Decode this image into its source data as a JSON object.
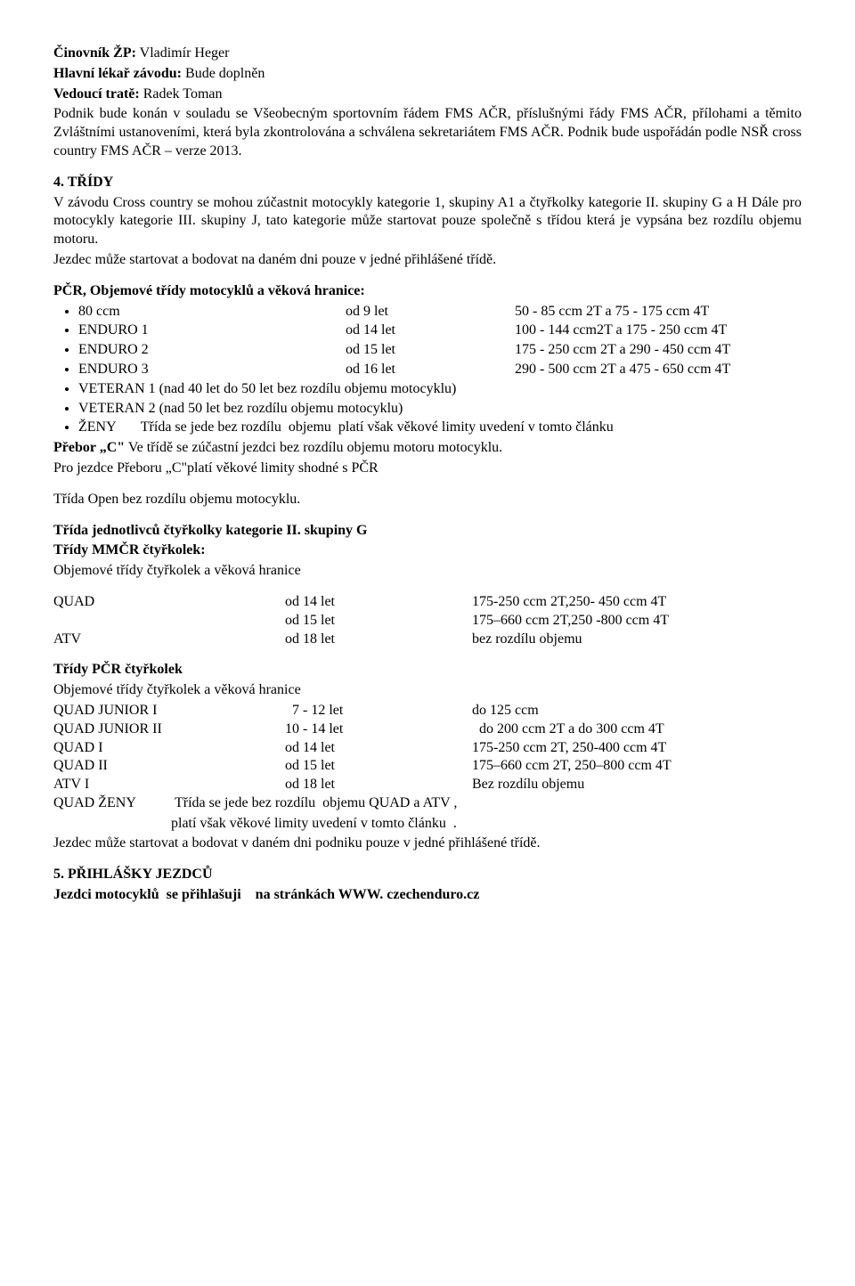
{
  "header": {
    "official_label": "Činovník ŽP:",
    "official_name": " Vladimír Heger",
    "doctor_label": "Hlavní lékař závodu:",
    "doctor_value": "  Bude doplněn",
    "track_label": "Vedoucí tratě:",
    "track_value": " Radek Toman",
    "intro1": "Podnik bude konán v souladu se Všeobecným sportovním řádem FMS AČR, příslušnými řády FMS AČR, přílohami a těmito Zvláštními ustanoveními, která byla zkontrolována a schválena sekretariátem FMS AČR. Podnik bude uspořádán podle NSŘ cross country FMS AČR – verze 2013."
  },
  "s4": {
    "title": "4. TŘÍDY",
    "p1": "V závodu Cross country se mohou zúčastnit motocykly kategorie 1, skupiny A1 a čtyřkolky kategorie II. skupiny G a H Dále pro motocykly kategorie III. skupiny J, tato kategorie může startovat pouze společně s třídou která je vypsána bez rozdílu objemu motoru.",
    "p2": "Jezdec může startovat a bodovat na daném dni pouze v jedné přihlášené třídě."
  },
  "pcr": {
    "heading": "PČR, Objemové třídy motocyklů a věková hranice:",
    "rows": [
      {
        "cls": "80 ccm",
        "age": "od  9 let",
        "spec": "  50 - 85 ccm 2T a 75 - 175 ccm 4T"
      },
      {
        "cls": "ENDURO 1",
        "age": "od 14 let",
        "spec": "100 - 144 ccm2T a 175 - 250 ccm 4T"
      },
      {
        "cls": "ENDURO 2",
        "age": "od 15 let",
        "spec": "175 - 250 ccm 2T a 290 - 450 ccm 4T"
      },
      {
        "cls": "ENDURO 3",
        "age": "od 16 let",
        "spec": "290 - 500 ccm 2T a 475 - 650 ccm 4T"
      }
    ],
    "vet1": "VETERAN 1 (nad 40 let do 50 let bez rozdílu objemu motocyklu)",
    "vet2": "VETERAN 2 (nad 50 let bez rozdílu objemu motocyklu)",
    "zeny": "ŽENY       Třída se jede bez rozdílu  objemu  platí však věkové limity uvedení v tomto článku",
    "prebor_label": "Přebor „C\"",
    "prebor_text": " Ve třídě se zúčastní jezdci bez rozdílu objemu motoru motocyklu.",
    "prebor2": " Pro jezdce Přeboru „C\"platí věkové limity shodné s PČR",
    "open": "Třída Open bez rozdílu objemu motocyklu."
  },
  "quad": {
    "h1": "Třída jednotlivců čtyřkolky kategorie II. skupiny G",
    "h2": "Třídy MMČR čtyřkolek:",
    "sub": "Objemové třídy čtyřkolek a věková hranice",
    "rows": [
      {
        "cls": "QUAD",
        "age": "od 14 let",
        "spec": "175-250 ccm 2T,250- 450 ccm 4T"
      },
      {
        "cls": "",
        "age": "od 15 let",
        "spec": "175–660 ccm 2T,250 -800 ccm 4T"
      },
      {
        "cls": "ATV",
        "age": "od 18 let",
        "spec": "bez rozdílu objemu"
      }
    ]
  },
  "pcrq": {
    "h": "Třídy PČR čtyřkolek",
    "sub": "Objemové třídy čtyřkolek a věková hranice",
    "rows": [
      {
        "cls": "QUAD JUNIOR I",
        "age": "  7 - 12 let",
        "spec": "do 125 ccm"
      },
      {
        "cls": "QUAD JUNIOR II",
        "age": "10 - 14 let",
        "spec": "  do 200 ccm 2T a do 300 ccm 4T"
      },
      {
        "cls": "QUAD  I",
        "age": "od 14 let",
        "spec": "175-250 ccm 2T, 250-400 ccm 4T"
      },
      {
        "cls": "QUAD  II",
        "age": "od 15 let",
        "spec": "175–660 ccm 2T, 250–800 ccm 4T"
      },
      {
        "cls": "ATV  I",
        "age": "od 18 let",
        "spec": "Bez rozdílu objemu"
      }
    ],
    "zeny1": "QUAD ŽENY           Třída se jede bez rozdílu  objemu QUAD a ATV ,",
    "zeny2": "                                 platí však věkové limity uvedení v tomto článku  .",
    "last": "Jezdec může startovat a bodovat v daném dni podniku pouze v jedné přihlášené třídě."
  },
  "s5": {
    "title": "5. PŘIHLÁŠKY JEZDCŮ",
    "line": "Jezdci motocyklů  se přihlašuji    na stránkách WWW. czechenduro.cz"
  }
}
